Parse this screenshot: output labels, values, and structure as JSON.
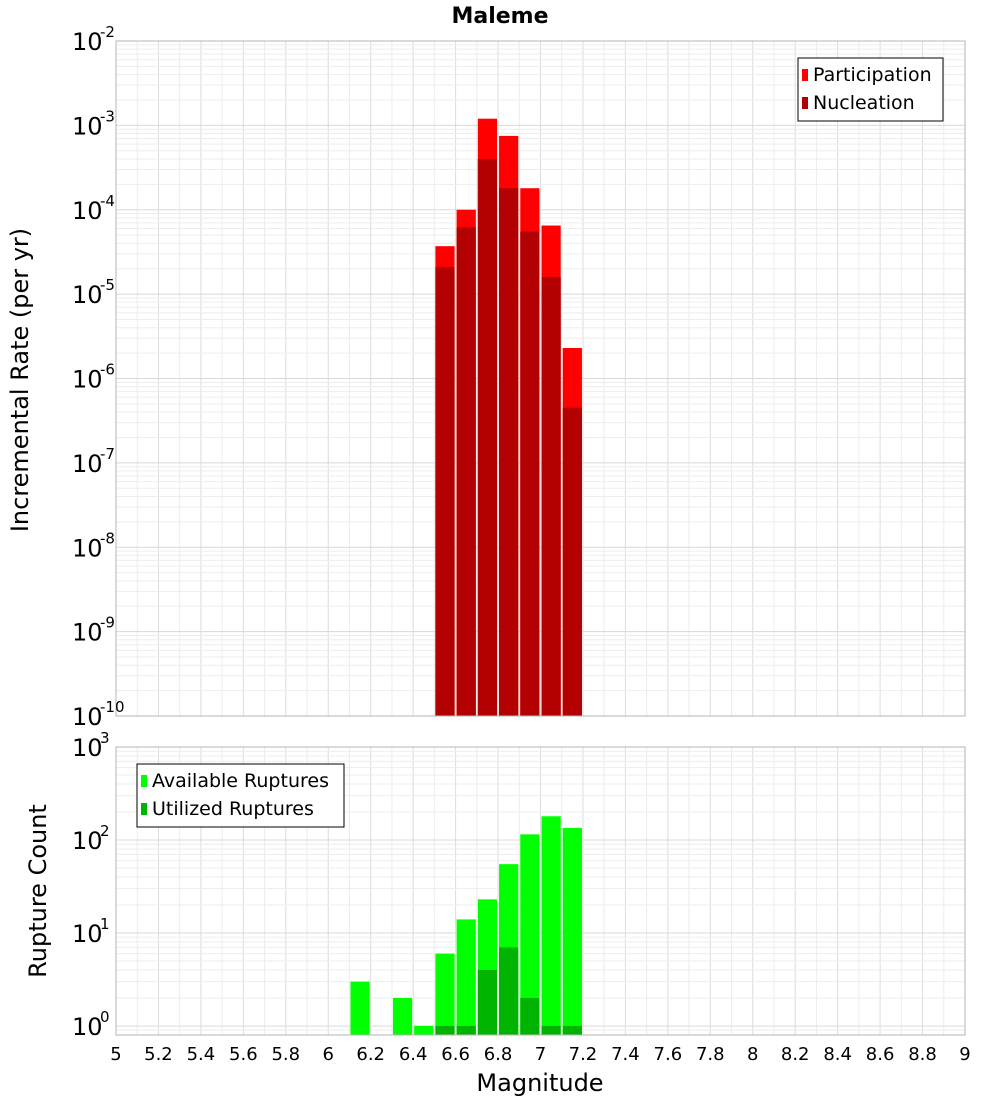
{
  "chart_data": [
    {
      "type": "bar",
      "title": "Maleme",
      "xlabel": "Magnitude",
      "ylabel": "Incremental Rate (per yr)",
      "yscale": "log",
      "ylim": [
        1e-10,
        0.01
      ],
      "xlim": [
        5,
        9
      ],
      "y_tick_labels": [
        {
          "base": "10",
          "exp": "-2"
        },
        {
          "base": "10",
          "exp": "-3"
        },
        {
          "base": "10",
          "exp": "-4"
        },
        {
          "base": "10",
          "exp": "-5"
        },
        {
          "base": "10",
          "exp": "-6"
        },
        {
          "base": "10",
          "exp": "-7"
        },
        {
          "base": "10",
          "exp": "-8"
        },
        {
          "base": "10",
          "exp": "-9"
        },
        {
          "base": "10",
          "exp": "-10"
        }
      ],
      "grid": true,
      "legend_position": "top-right",
      "bar_width": 0.1,
      "series": [
        {
          "name": "Participation",
          "color": "#ff0000",
          "x": [
            6.55,
            6.65,
            6.75,
            6.85,
            6.95,
            7.05,
            7.15
          ],
          "values": [
            3.7e-05,
            0.0001,
            0.0012,
            0.00075,
            0.00018,
            6.5e-05,
            2.3e-06
          ]
        },
        {
          "name": "Nucleation",
          "color": "#b30000",
          "x": [
            6.55,
            6.65,
            6.75,
            6.85,
            6.95,
            7.05,
            7.15
          ],
          "values": [
            2.1e-05,
            6.2e-05,
            0.0004,
            0.00018,
            5.5e-05,
            1.6e-05,
            4.5e-07
          ]
        }
      ]
    },
    {
      "type": "bar",
      "xlabel": "Magnitude",
      "ylabel": "Rupture Count",
      "yscale": "log",
      "ylim": [
        0.8,
        1000
      ],
      "xlim": [
        5,
        9
      ],
      "x_ticks": [
        "5",
        "5.2",
        "5.4",
        "5.6",
        "5.8",
        "6",
        "6.2",
        "6.4",
        "6.6",
        "6.8",
        "7",
        "7.2",
        "7.4",
        "7.6",
        "7.8",
        "8",
        "8.2",
        "8.4",
        "8.6",
        "8.8",
        "9"
      ],
      "y_tick_labels": [
        {
          "base": "10",
          "exp": "3"
        },
        {
          "base": "10",
          "exp": "2"
        },
        {
          "base": "10",
          "exp": "1"
        },
        {
          "base": "10",
          "exp": "0"
        }
      ],
      "grid": true,
      "legend_position": "top-left",
      "bar_width": 0.1,
      "series": [
        {
          "name": "Available Ruptures",
          "color": "#00ff00",
          "x": [
            6.15,
            6.35,
            6.45,
            6.55,
            6.65,
            6.75,
            6.85,
            6.95,
            7.05,
            7.15
          ],
          "values": [
            3,
            2,
            1,
            6,
            14,
            23,
            55,
            115,
            180,
            135
          ]
        },
        {
          "name": "Utilized Ruptures",
          "color": "#00b300",
          "x": [
            6.55,
            6.65,
            6.75,
            6.85,
            6.95,
            7.05,
            7.15
          ],
          "values": [
            1,
            1,
            4,
            7,
            2,
            1,
            1
          ]
        }
      ]
    }
  ]
}
